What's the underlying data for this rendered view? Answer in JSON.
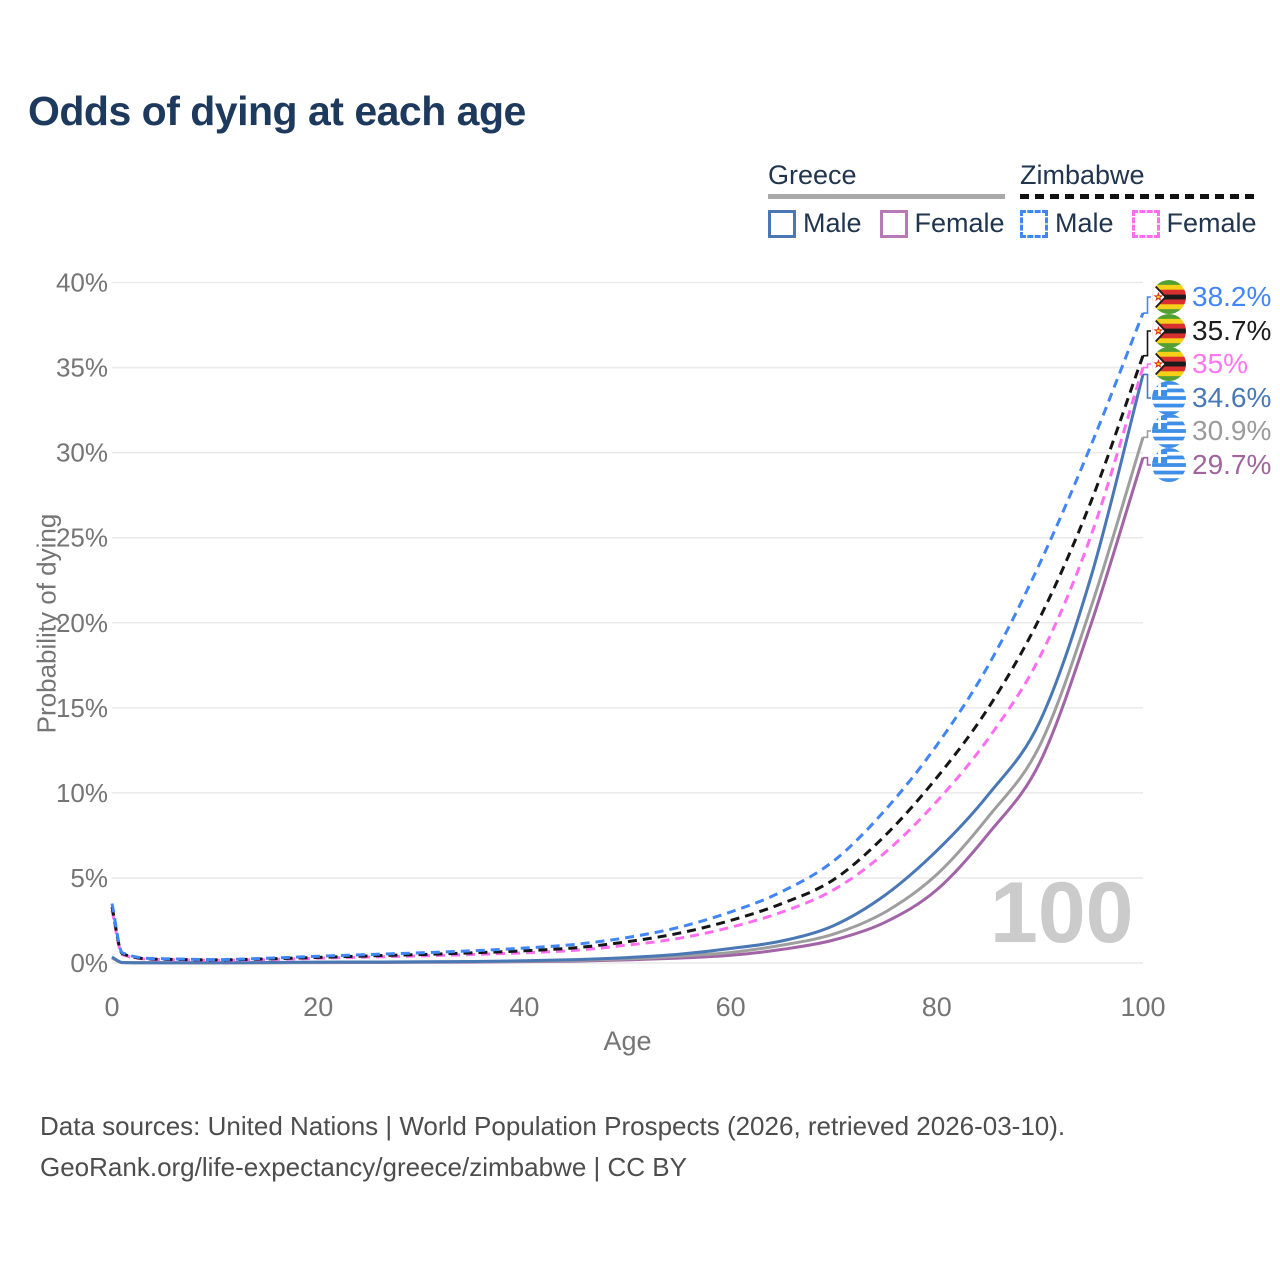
{
  "title": "Odds of dying at each age",
  "watermark": {
    "text": "100"
  },
  "legend": {
    "groups": [
      {
        "label": "Greece",
        "line_style": "solid",
        "line_color": "#a9a9a9",
        "items": [
          {
            "label": "Male",
            "color": "#4a78b5"
          },
          {
            "label": "Female",
            "color": "#b77ab4"
          }
        ]
      },
      {
        "label": "Zimbabwe",
        "line_style": "dashed",
        "line_color": "#111111",
        "items": [
          {
            "label": "Male",
            "color": "#4286f5"
          },
          {
            "label": "Female",
            "color": "#ff6ef0"
          }
        ]
      }
    ]
  },
  "chart_data": {
    "type": "line",
    "title": "Odds of dying at each age",
    "xlabel": "Age",
    "ylabel": "Probability of dying",
    "xlim": [
      0,
      100
    ],
    "ylim": [
      0,
      40
    ],
    "x_ticks": [
      "0",
      "20",
      "40",
      "60",
      "80",
      "100"
    ],
    "y_ticks": [
      "0%",
      "5%",
      "10%",
      "15%",
      "20%",
      "25%",
      "30%",
      "35%",
      "40%"
    ],
    "grid": "horizontal",
    "legend_position": "top-right",
    "unit": "percent",
    "ages": [
      0,
      1,
      5,
      10,
      15,
      20,
      25,
      30,
      35,
      40,
      45,
      50,
      55,
      60,
      65,
      70,
      75,
      80,
      85,
      90,
      95,
      100
    ],
    "series": [
      {
        "name": "Zimbabwe Male",
        "country": "Zimbabwe",
        "sex": "Male",
        "flag": "zw",
        "dashed": true,
        "color": "#4286f5",
        "label_color": "#4286f5",
        "end_label": "38.2%",
        "end_value": 38.2,
        "values": [
          3.5,
          0.6,
          0.25,
          0.2,
          0.28,
          0.4,
          0.5,
          0.6,
          0.72,
          0.88,
          1.1,
          1.5,
          2.1,
          3.0,
          4.2,
          6.0,
          9.0,
          12.8,
          17.5,
          23.5,
          30.5,
          38.2
        ]
      },
      {
        "name": "Zimbabwe Both sexes",
        "country": "Zimbabwe",
        "sex": "Both",
        "flag": "zw",
        "dashed": true,
        "color": "#151515",
        "label_color": "#1c1c1c",
        "end_label": "35.7%",
        "end_value": 35.7,
        "values": [
          3.3,
          0.55,
          0.22,
          0.18,
          0.24,
          0.33,
          0.42,
          0.5,
          0.6,
          0.72,
          0.9,
          1.25,
          1.75,
          2.5,
          3.5,
          4.9,
          7.5,
          10.9,
          15.0,
          20.3,
          27.2,
          35.7
        ]
      },
      {
        "name": "Zimbabwe Female",
        "country": "Zimbabwe",
        "sex": "Female",
        "flag": "zw",
        "dashed": true,
        "color": "#ff6ef0",
        "label_color": "#ff77ee",
        "end_label": "35%",
        "end_value": 35.0,
        "values": [
          3.1,
          0.5,
          0.2,
          0.16,
          0.2,
          0.28,
          0.35,
          0.42,
          0.5,
          0.6,
          0.75,
          1.05,
          1.45,
          2.1,
          3.0,
          4.3,
          6.5,
          9.5,
          13.2,
          18.0,
          25.2,
          35.0
        ]
      },
      {
        "name": "Greece Male",
        "country": "Greece",
        "sex": "Male",
        "flag": "gr",
        "dashed": false,
        "color": "#4a78b5",
        "label_color": "#4a78b5",
        "end_label": "34.6%",
        "end_value": 34.6,
        "values": [
          0.35,
          0.03,
          0.01,
          0.01,
          0.03,
          0.05,
          0.06,
          0.07,
          0.09,
          0.13,
          0.2,
          0.32,
          0.52,
          0.85,
          1.3,
          2.2,
          4.0,
          6.6,
          9.9,
          14.2,
          22.8,
          34.6
        ]
      },
      {
        "name": "Greece Both sexes",
        "country": "Greece",
        "sex": "Both",
        "flag": "gr",
        "dashed": false,
        "color": "#9e9e9e",
        "label_color": "#9b9b9b",
        "end_label": "30.9%",
        "end_value": 30.9,
        "values": [
          0.32,
          0.027,
          0.009,
          0.008,
          0.02,
          0.035,
          0.045,
          0.055,
          0.07,
          0.1,
          0.15,
          0.24,
          0.4,
          0.62,
          1.05,
          1.7,
          3.0,
          5.2,
          8.6,
          12.8,
          21.0,
          30.9
        ]
      },
      {
        "name": "Greece Female",
        "country": "Greece",
        "sex": "Female",
        "flag": "gr",
        "dashed": false,
        "color": "#a264a6",
        "label_color": "#a0659e",
        "end_label": "29.7%",
        "end_value": 29.7,
        "values": [
          0.3,
          0.023,
          0.008,
          0.007,
          0.015,
          0.025,
          0.03,
          0.04,
          0.055,
          0.08,
          0.11,
          0.18,
          0.29,
          0.45,
          0.8,
          1.35,
          2.4,
          4.3,
          7.6,
          11.8,
          20.0,
          29.7
        ]
      }
    ]
  },
  "footer": {
    "line1": "Data sources: United Nations | World Population Prospects (2026, retrieved 2026-03-10).",
    "line2": "GeoRank.org/life-expectancy/greece/zimbabwe | CC BY"
  }
}
